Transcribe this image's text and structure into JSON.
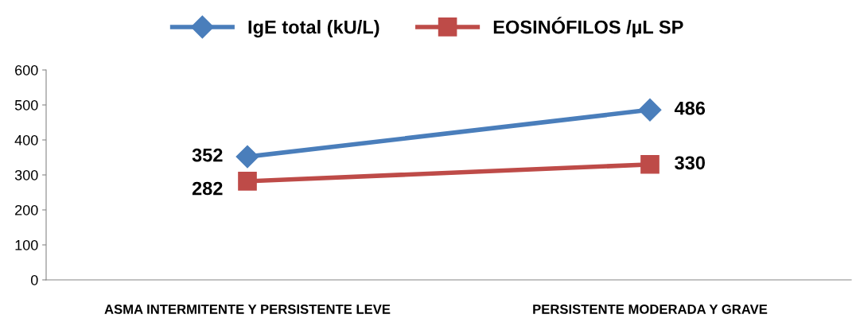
{
  "chart_data": {
    "type": "line",
    "categories": [
      "ASMA INTERMITENTE Y PERSISTENTE LEVE",
      "PERSISTENTE MODERADA Y GRAVE"
    ],
    "series": [
      {
        "name": "IgE total (kU/L)",
        "color": "#4a7ebb",
        "values": [
          352,
          486
        ],
        "marker": "diamond"
      },
      {
        "name": "EOSINÓFILOS /µL SP",
        "color": "#be4b48",
        "values": [
          282,
          330
        ],
        "marker": "square"
      }
    ],
    "ylim": [
      0,
      600
    ],
    "yticks": [
      0,
      100,
      200,
      300,
      400,
      500,
      600
    ],
    "grid": false,
    "legend": "top",
    "data_labels": true
  }
}
